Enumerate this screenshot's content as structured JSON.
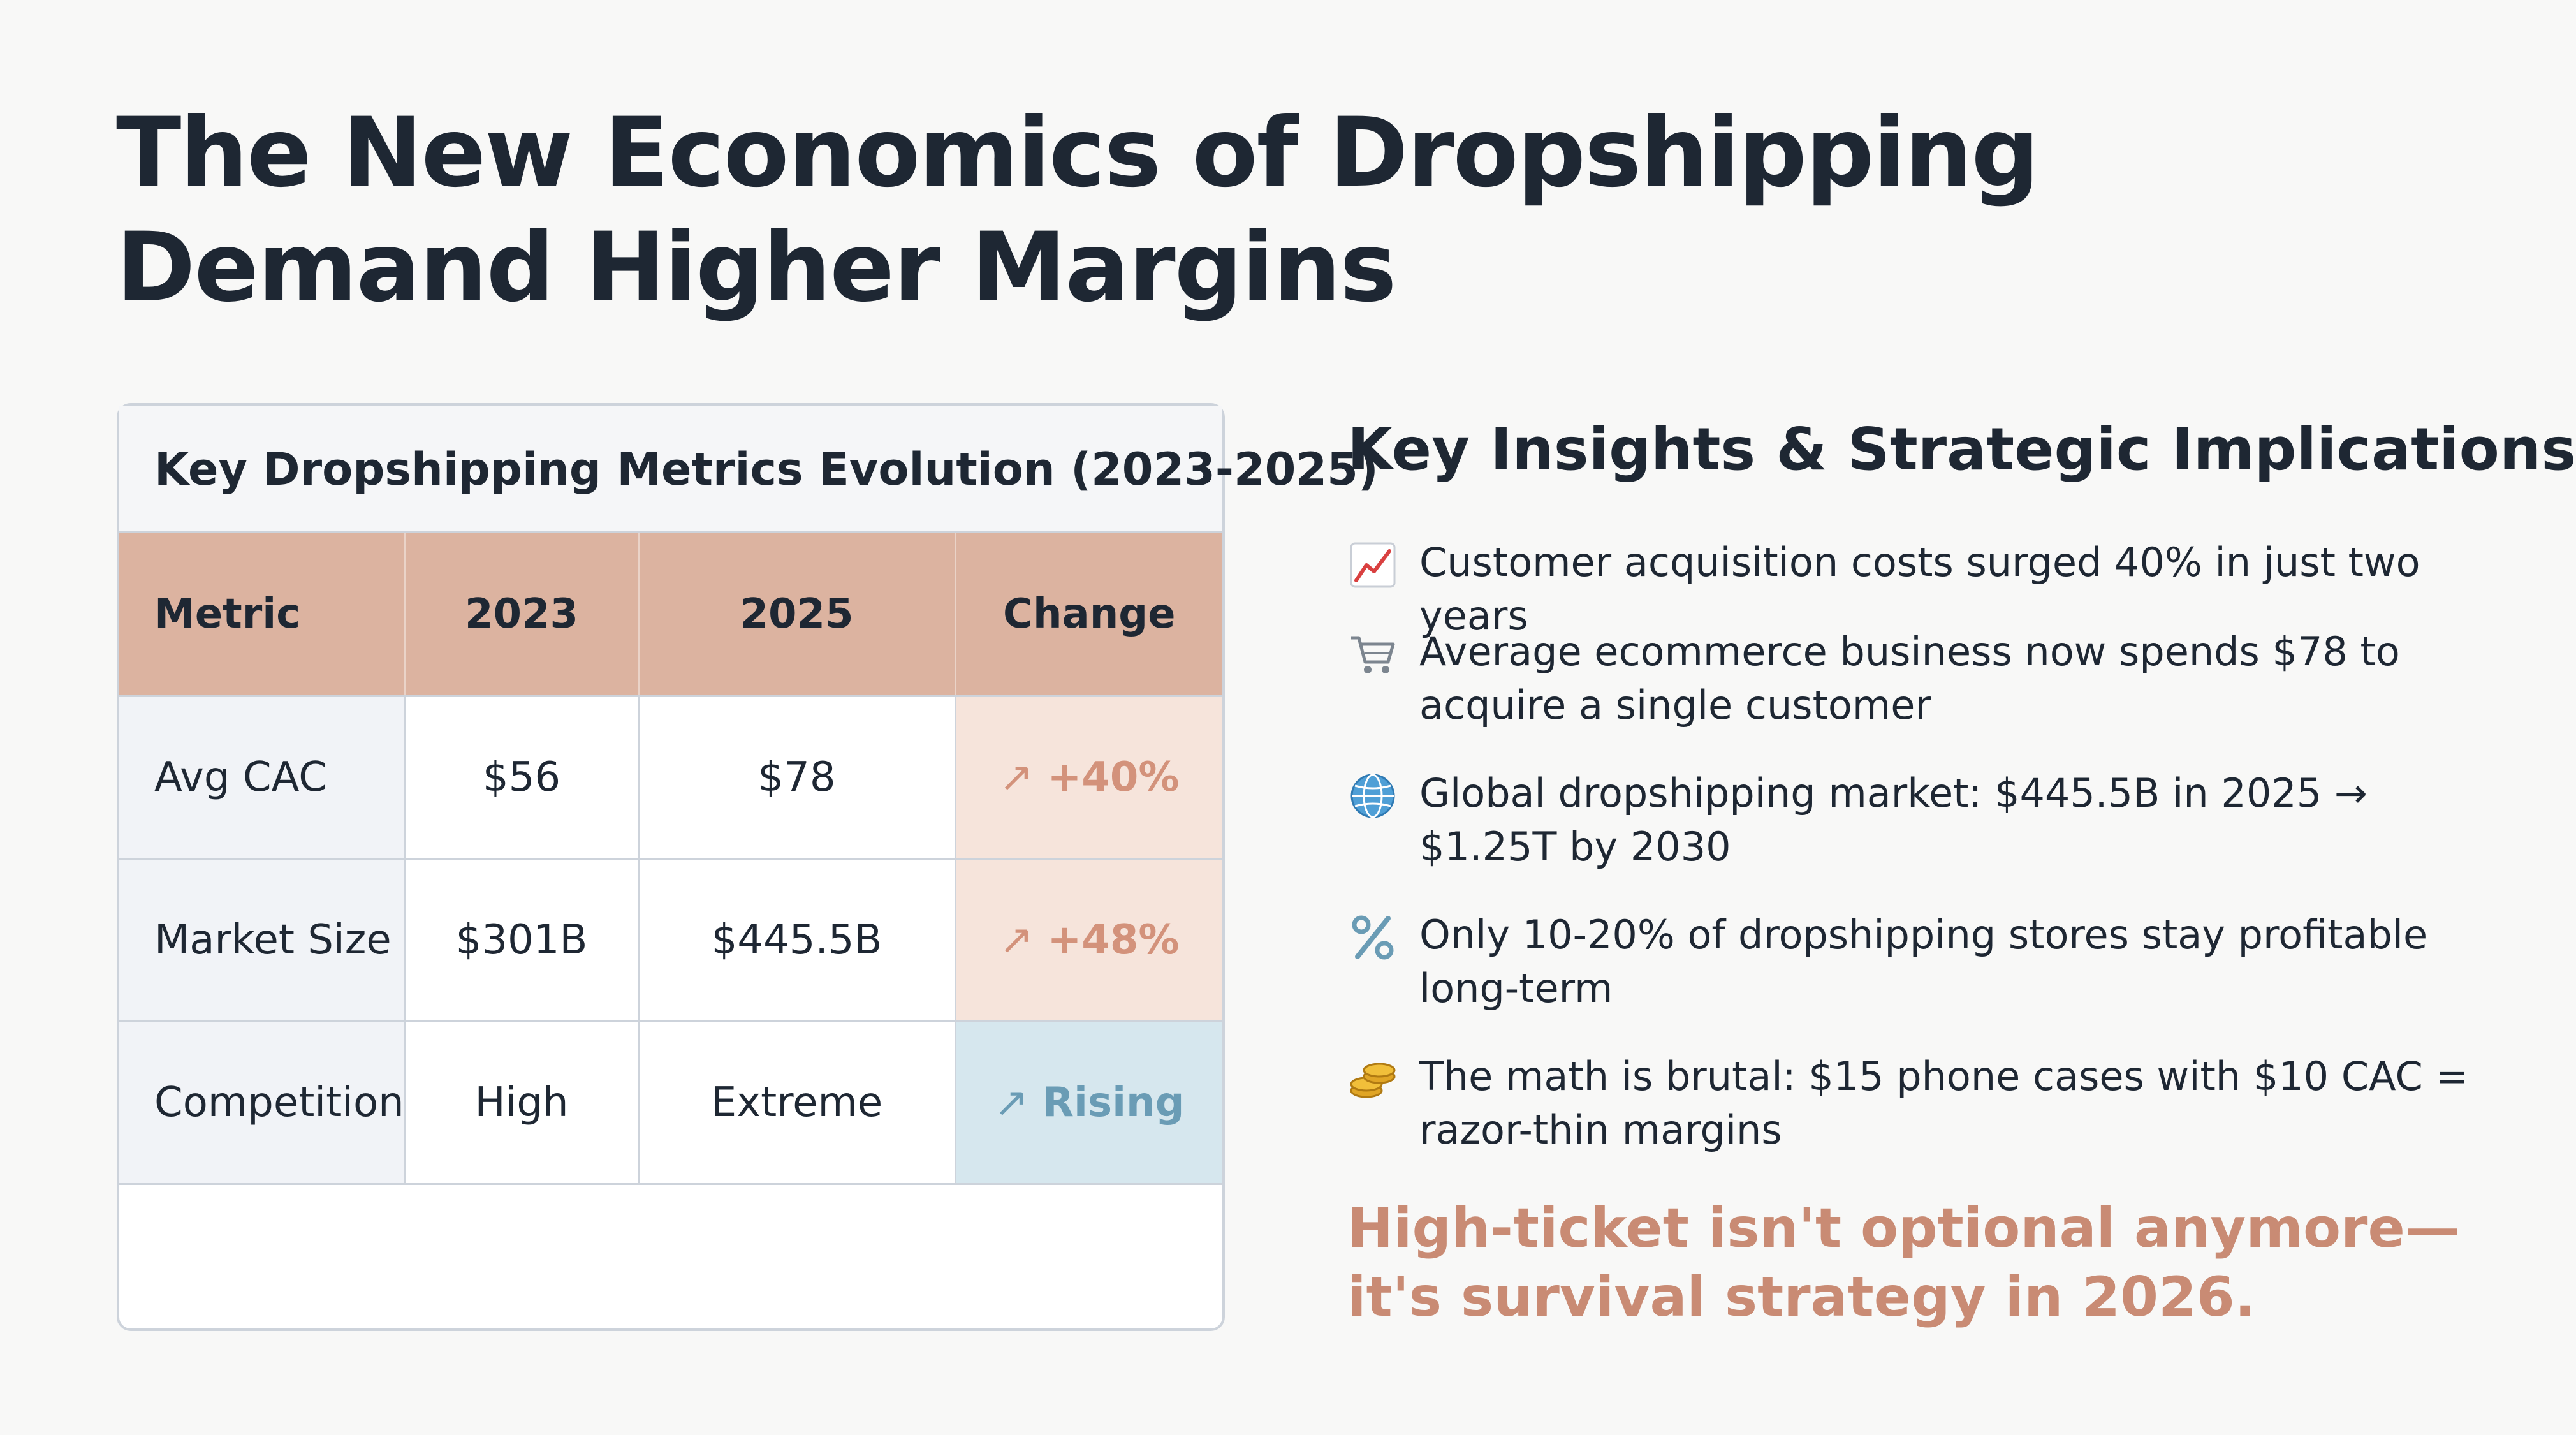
{
  "title": {
    "line1": "The New Economics of Dropshipping",
    "line2": "Demand Higher Margins"
  },
  "table": {
    "title": "Key Dropshipping Metrics Evolution (2023-2025)",
    "headers": [
      "Metric",
      "2023",
      "2025",
      "Change"
    ],
    "rows": [
      {
        "metric": "Avg CAC",
        "y2023": "$56",
        "y2025": "$78",
        "change": "+40%",
        "change_arrow": "↗",
        "change_color": "#d3927b"
      },
      {
        "metric": "Market Size",
        "y2023": "$301B",
        "y2025": "$445.5B",
        "change": "+48%",
        "change_arrow": "↗",
        "change_color": "#d3927b"
      },
      {
        "metric": "Competition",
        "y2023": "High",
        "y2025": "Extreme",
        "change": "Rising",
        "change_arrow": "↗",
        "change_color": "#6a9cb5"
      }
    ]
  },
  "insights": {
    "title": "Key Insights & Strategic Implications",
    "items": [
      {
        "icon": "chart-up-icon",
        "text": "Customer acquisition costs surged 40% in just two years"
      },
      {
        "icon": "shopping-cart-icon",
        "text": "Average ecommerce business now spends $78 to acquire a single customer"
      },
      {
        "icon": "globe-icon",
        "text": "Global dropshipping market: $445.5B in 2025 → $1.25T by 2030"
      },
      {
        "icon": "percent-icon",
        "text": "Only 10-20% of dropshipping stores stay profitable long-term"
      },
      {
        "icon": "coins-icon",
        "text": "The math is brutal: $15 phone cases with $10 CAC = razor-thin margins"
      }
    ],
    "conclusion": "High-ticket isn't optional anymore—it's survival strategy in 2026."
  },
  "colors": {
    "header_bg": "#dcb3a0",
    "accent": "#c98b74",
    "rising": "#6a9cb5"
  }
}
